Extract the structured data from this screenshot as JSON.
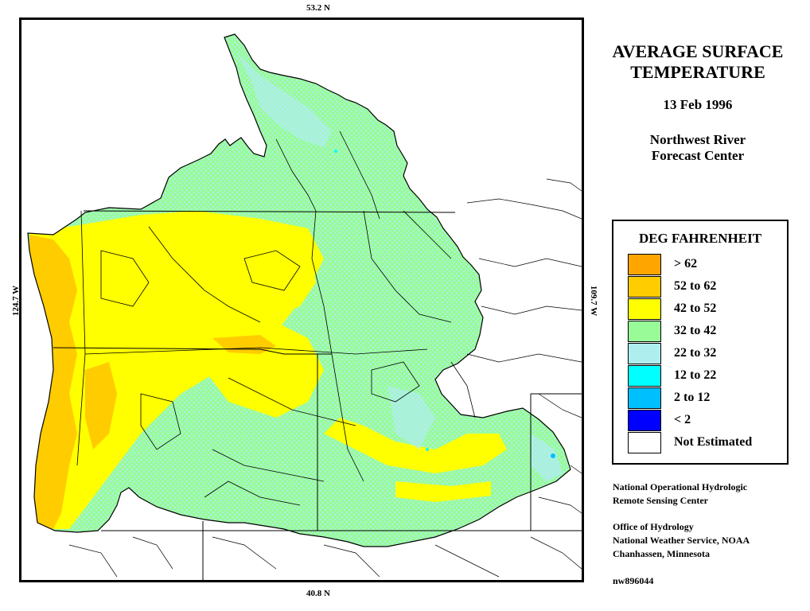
{
  "coords": {
    "top": "53.2 N",
    "bottom": "40.8 N",
    "left": "124.7 W",
    "right": "109.7 W"
  },
  "title_line1": "AVERAGE SURFACE",
  "title_line2": "TEMPERATURE",
  "date": "13 Feb 1996",
  "center_line1": "Northwest River",
  "center_line2": "Forecast Center",
  "legend": {
    "title": "DEG FAHRENHEIT",
    "items": [
      {
        "label": "> 62",
        "color": "#ffa500"
      },
      {
        "label": "52 to 62",
        "color": "#ffcc00"
      },
      {
        "label": "42 to 52",
        "color": "#ffff00"
      },
      {
        "label": "32 to 42",
        "color": "#98fb98"
      },
      {
        "label": "22 to 32",
        "color": "#afeeee"
      },
      {
        "label": "12 to 22",
        "color": "#00ffff"
      },
      {
        "label": "2 to 12",
        "color": "#00bfff"
      },
      {
        "label": "< 2",
        "color": "#0000ff"
      },
      {
        "label": "Not Estimated",
        "color": "#ffffff"
      }
    ]
  },
  "credits": {
    "org_line1": "National Operational Hydrologic",
    "org_line2": "Remote Sensing Center",
    "office_line1": "Office of Hydrology",
    "office_line2": "National Weather Service, NOAA",
    "office_line3": "Chanhassen, Minnesota",
    "product_id": "nw896044"
  }
}
